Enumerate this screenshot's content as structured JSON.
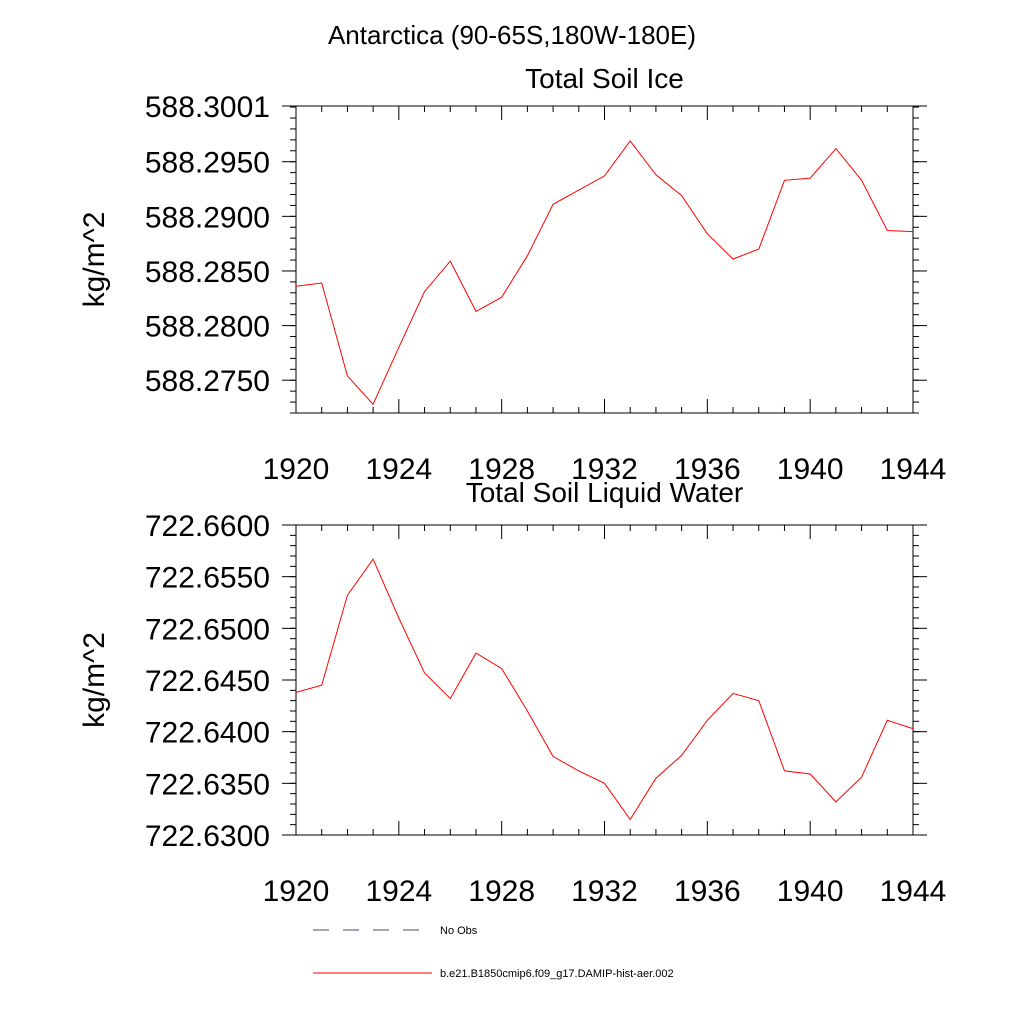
{
  "figure": {
    "title": "Antarctica (90-65S,180W-180E)"
  },
  "chart_data": [
    {
      "type": "line",
      "title": "Total Soil Ice",
      "xlabel": "",
      "ylabel": "kg/m^2",
      "xlim": [
        1920,
        1944
      ],
      "ylim": [
        588.272,
        588.3001
      ],
      "x_ticks": [
        "1920",
        "1924",
        "1928",
        "1932",
        "1936",
        "1940",
        "1944"
      ],
      "y_ticks": [
        "588.3001",
        "588.2950",
        "588.2900",
        "588.2850",
        "588.2800",
        "588.2750"
      ],
      "y_tick_values": [
        588.3001,
        588.295,
        588.29,
        588.285,
        588.28,
        588.275
      ],
      "grid": false,
      "series": [
        {
          "name": "b.e21.B1850cmip6.f09_g17.DAMIP-hist-aer.002",
          "color": "#ff0000",
          "x": [
            1920,
            1921,
            1922,
            1923,
            1924,
            1925,
            1926,
            1927,
            1928,
            1929,
            1930,
            1931,
            1932,
            1933,
            1934,
            1935,
            1936,
            1937,
            1938,
            1939,
            1940,
            1941,
            1942,
            1943,
            1944
          ],
          "y": [
            588.2836,
            588.2839,
            588.2754,
            588.2728,
            588.278,
            588.2831,
            588.2859,
            588.2813,
            588.2826,
            588.2864,
            588.2911,
            588.2924,
            588.2937,
            588.2969,
            588.2938,
            588.2919,
            588.2884,
            588.2861,
            588.287,
            588.2933,
            588.2935,
            588.2962,
            588.2933,
            588.2887,
            588.2886
          ]
        }
      ]
    },
    {
      "type": "line",
      "title": "Total Soil Liquid Water",
      "xlabel": "",
      "ylabel": "kg/m^2",
      "xlim": [
        1920,
        1944
      ],
      "ylim": [
        722.63,
        722.66
      ],
      "x_ticks": [
        "1920",
        "1924",
        "1928",
        "1932",
        "1936",
        "1940",
        "1944"
      ],
      "y_ticks": [
        "722.6600",
        "722.6550",
        "722.6500",
        "722.6450",
        "722.6400",
        "722.6350",
        "722.6300"
      ],
      "y_tick_values": [
        722.66,
        722.655,
        722.65,
        722.645,
        722.64,
        722.635,
        722.63
      ],
      "grid": false,
      "series": [
        {
          "name": "b.e21.B1850cmip6.f09_g17.DAMIP-hist-aer.002",
          "color": "#ff0000",
          "x": [
            1920,
            1921,
            1922,
            1923,
            1924,
            1925,
            1926,
            1927,
            1928,
            1929,
            1930,
            1931,
            1932,
            1933,
            1934,
            1935,
            1936,
            1937,
            1938,
            1939,
            1940,
            1941,
            1942,
            1943,
            1944
          ],
          "y": [
            722.6438,
            722.6445,
            722.6532,
            722.6567,
            722.651,
            722.6457,
            722.6432,
            722.6476,
            722.6461,
            722.642,
            722.6376,
            722.6362,
            722.635,
            722.6315,
            722.6355,
            722.6377,
            722.6411,
            722.6437,
            722.643,
            722.6362,
            722.6359,
            722.6332,
            722.6356,
            722.6411,
            722.6403
          ]
        }
      ]
    }
  ],
  "legend": {
    "placement": "bottom-center",
    "items": [
      {
        "label": "No Obs",
        "style": "dashed",
        "color": "#4a4a6a"
      },
      {
        "label": "b.e21.B1850cmip6.f09_g17.DAMIP-hist-aer.002",
        "style": "solid",
        "color": "#ff0000"
      }
    ]
  }
}
